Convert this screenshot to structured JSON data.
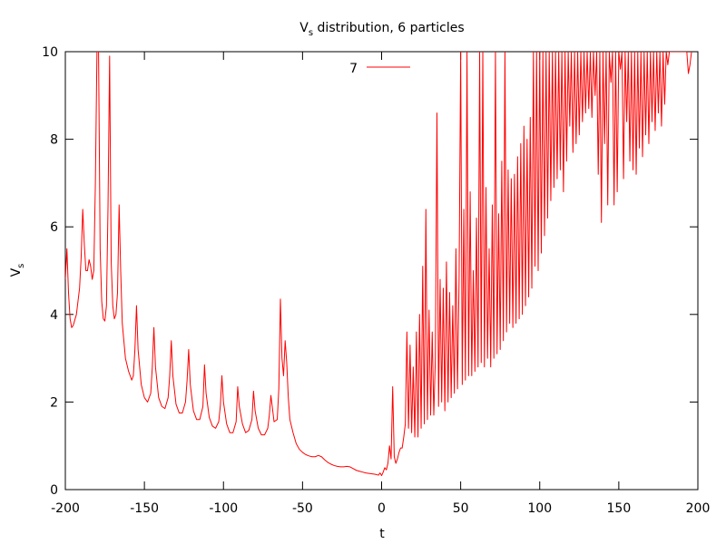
{
  "chart_data": {
    "type": "line",
    "title": "V",
    "title_subscript": "s",
    "title_suffix": " distribution, 6 particles",
    "xlabel": "t",
    "ylabel": "V",
    "ylabel_subscript": "s",
    "xlim": [
      -200,
      200
    ],
    "ylim": [
      0,
      10
    ],
    "x_ticks": [
      -200,
      -150,
      -100,
      -50,
      0,
      50,
      100,
      150,
      200
    ],
    "y_ticks": [
      0,
      2,
      4,
      6,
      8,
      10
    ],
    "grid": false,
    "legend_position": "top-center",
    "series": [
      {
        "name": "7",
        "color": "#ff0000",
        "points": [
          [
            -200,
            4.8
          ],
          [
            -199,
            5.5
          ],
          [
            -198,
            4.5
          ],
          [
            -197,
            3.9
          ],
          [
            -196,
            3.7
          ],
          [
            -195,
            3.75
          ],
          [
            -193,
            4.0
          ],
          [
            -191,
            4.6
          ],
          [
            -190,
            5.3
          ],
          [
            -189,
            6.4
          ],
          [
            -188,
            5.6
          ],
          [
            -187,
            5.0
          ],
          [
            -186,
            5.0
          ],
          [
            -185,
            5.25
          ],
          [
            -184,
            5.1
          ],
          [
            -183,
            4.8
          ],
          [
            -182,
            5.0
          ],
          [
            -181,
            7.0
          ],
          [
            -180,
            10.0
          ],
          [
            -179,
            10.0
          ],
          [
            -178,
            5.5
          ],
          [
            -177,
            4.3
          ],
          [
            -176,
            3.9
          ],
          [
            -175,
            3.85
          ],
          [
            -174,
            4.2
          ],
          [
            -173,
            6.5
          ],
          [
            -172,
            9.9
          ],
          [
            -171,
            5.2
          ],
          [
            -170,
            4.2
          ],
          [
            -169,
            3.9
          ],
          [
            -168,
            4.0
          ],
          [
            -167,
            4.5
          ],
          [
            -166,
            6.5
          ],
          [
            -165,
            5.0
          ],
          [
            -164,
            3.8
          ],
          [
            -162,
            3.0
          ],
          [
            -160,
            2.7
          ],
          [
            -158,
            2.5
          ],
          [
            -157,
            2.6
          ],
          [
            -156,
            3.2
          ],
          [
            -155,
            4.2
          ],
          [
            -154,
            3.2
          ],
          [
            -152,
            2.4
          ],
          [
            -150,
            2.1
          ],
          [
            -148,
            2.0
          ],
          [
            -146,
            2.2
          ],
          [
            -145,
            2.8
          ],
          [
            -144,
            3.7
          ],
          [
            -143,
            2.8
          ],
          [
            -141,
            2.1
          ],
          [
            -139,
            1.9
          ],
          [
            -137,
            1.85
          ],
          [
            -135,
            2.1
          ],
          [
            -134,
            2.6
          ],
          [
            -133,
            3.4
          ],
          [
            -132,
            2.6
          ],
          [
            -130,
            1.95
          ],
          [
            -128,
            1.75
          ],
          [
            -126,
            1.75
          ],
          [
            -124,
            2.0
          ],
          [
            -123,
            2.5
          ],
          [
            -122,
            3.2
          ],
          [
            -121,
            2.4
          ],
          [
            -119,
            1.8
          ],
          [
            -117,
            1.6
          ],
          [
            -115,
            1.6
          ],
          [
            -113,
            1.9
          ],
          [
            -112,
            2.85
          ],
          [
            -111,
            2.2
          ],
          [
            -109,
            1.65
          ],
          [
            -107,
            1.45
          ],
          [
            -105,
            1.4
          ],
          [
            -103,
            1.55
          ],
          [
            -102,
            1.9
          ],
          [
            -101,
            2.6
          ],
          [
            -100,
            2.0
          ],
          [
            -98,
            1.5
          ],
          [
            -96,
            1.3
          ],
          [
            -94,
            1.3
          ],
          [
            -92,
            1.55
          ],
          [
            -91,
            2.35
          ],
          [
            -90,
            1.9
          ],
          [
            -88,
            1.5
          ],
          [
            -86,
            1.3
          ],
          [
            -84,
            1.35
          ],
          [
            -82,
            1.6
          ],
          [
            -81,
            2.25
          ],
          [
            -80,
            1.8
          ],
          [
            -78,
            1.4
          ],
          [
            -76,
            1.25
          ],
          [
            -74,
            1.25
          ],
          [
            -72,
            1.4
          ],
          [
            -71,
            1.7
          ],
          [
            -70,
            2.15
          ],
          [
            -69,
            1.85
          ],
          [
            -68,
            1.55
          ],
          [
            -66,
            1.6
          ],
          [
            -65,
            2.3
          ],
          [
            -64,
            4.35
          ],
          [
            -63,
            3.0
          ],
          [
            -62,
            2.6
          ],
          [
            -61,
            3.4
          ],
          [
            -60,
            2.9
          ],
          [
            -59,
            2.1
          ],
          [
            -58,
            1.6
          ],
          [
            -56,
            1.3
          ],
          [
            -54,
            1.05
          ],
          [
            -52,
            0.92
          ],
          [
            -50,
            0.85
          ],
          [
            -48,
            0.8
          ],
          [
            -46,
            0.77
          ],
          [
            -44,
            0.75
          ],
          [
            -42,
            0.75
          ],
          [
            -40,
            0.78
          ],
          [
            -38,
            0.75
          ],
          [
            -36,
            0.68
          ],
          [
            -34,
            0.62
          ],
          [
            -32,
            0.58
          ],
          [
            -30,
            0.55
          ],
          [
            -28,
            0.53
          ],
          [
            -26,
            0.52
          ],
          [
            -24,
            0.52
          ],
          [
            -22,
            0.53
          ],
          [
            -20,
            0.52
          ],
          [
            -18,
            0.48
          ],
          [
            -16,
            0.44
          ],
          [
            -14,
            0.42
          ],
          [
            -12,
            0.4
          ],
          [
            -10,
            0.38
          ],
          [
            -8,
            0.37
          ],
          [
            -6,
            0.36
          ],
          [
            -4,
            0.35
          ],
          [
            -2,
            0.33
          ],
          [
            -1,
            0.38
          ],
          [
            0,
            0.32
          ],
          [
            1,
            0.4
          ],
          [
            2,
            0.5
          ],
          [
            3,
            0.45
          ],
          [
            4,
            0.6
          ],
          [
            5,
            1.0
          ],
          [
            6,
            0.7
          ],
          [
            7,
            2.35
          ],
          [
            8,
            0.75
          ],
          [
            9,
            0.6
          ],
          [
            10,
            0.7
          ],
          [
            11,
            0.85
          ],
          [
            12,
            0.95
          ],
          [
            13,
            0.95
          ],
          [
            14,
            1.2
          ],
          [
            15,
            1.5
          ],
          [
            16,
            3.6
          ],
          [
            17,
            1.4
          ],
          [
            18,
            3.3
          ],
          [
            19,
            1.3
          ],
          [
            20,
            2.8
          ],
          [
            21,
            1.2
          ],
          [
            22,
            3.6
          ],
          [
            23,
            1.2
          ],
          [
            24,
            4.0
          ],
          [
            25,
            1.4
          ],
          [
            26,
            5.1
          ],
          [
            27,
            1.5
          ],
          [
            28,
            6.4
          ],
          [
            29,
            1.6
          ],
          [
            30,
            4.1
          ],
          [
            31,
            1.7
          ],
          [
            32,
            3.6
          ],
          [
            33,
            1.7
          ],
          [
            34,
            3.0
          ],
          [
            35,
            8.6
          ],
          [
            36,
            1.9
          ],
          [
            37,
            4.8
          ],
          [
            38,
            2.0
          ],
          [
            39,
            4.6
          ],
          [
            40,
            1.8
          ],
          [
            41,
            5.2
          ],
          [
            42,
            2.0
          ],
          [
            43,
            4.5
          ],
          [
            44,
            2.1
          ],
          [
            45,
            4.2
          ],
          [
            46,
            2.2
          ],
          [
            47,
            5.5
          ],
          [
            48,
            2.3
          ],
          [
            49,
            4.8
          ],
          [
            50,
            10.0
          ],
          [
            51,
            2.4
          ],
          [
            52,
            6.4
          ],
          [
            53,
            2.5
          ],
          [
            54,
            10.0
          ],
          [
            55,
            2.6
          ],
          [
            56,
            6.8
          ],
          [
            57,
            2.6
          ],
          [
            58,
            5.0
          ],
          [
            59,
            2.7
          ],
          [
            60,
            6.2
          ],
          [
            61,
            2.8
          ],
          [
            62,
            10.0
          ],
          [
            63,
            2.9
          ],
          [
            64,
            10.0
          ],
          [
            65,
            2.8
          ],
          [
            66,
            6.9
          ],
          [
            67,
            3.0
          ],
          [
            68,
            5.5
          ],
          [
            69,
            2.8
          ],
          [
            70,
            6.5
          ],
          [
            71,
            3.0
          ],
          [
            72,
            10.0
          ],
          [
            73,
            3.1
          ],
          [
            74,
            6.3
          ],
          [
            75,
            3.2
          ],
          [
            76,
            7.5
          ],
          [
            77,
            3.4
          ],
          [
            78,
            10.0
          ],
          [
            79,
            3.6
          ],
          [
            80,
            7.3
          ],
          [
            81,
            3.8
          ],
          [
            82,
            7.1
          ],
          [
            83,
            3.7
          ],
          [
            84,
            7.2
          ],
          [
            85,
            3.8
          ],
          [
            86,
            7.6
          ],
          [
            87,
            3.9
          ],
          [
            88,
            7.9
          ],
          [
            89,
            4.0
          ],
          [
            90,
            8.3
          ],
          [
            91,
            4.2
          ],
          [
            92,
            8.0
          ],
          [
            93,
            4.4
          ],
          [
            94,
            8.5
          ],
          [
            95,
            4.6
          ],
          [
            96,
            10.0
          ],
          [
            97,
            5.1
          ],
          [
            98,
            10.0
          ],
          [
            99,
            5.0
          ],
          [
            100,
            10.0
          ],
          [
            101,
            5.4
          ],
          [
            102,
            10.0
          ],
          [
            103,
            5.8
          ],
          [
            104,
            10.0
          ],
          [
            105,
            6.2
          ],
          [
            106,
            10.0
          ],
          [
            107,
            6.6
          ],
          [
            108,
            10.0
          ],
          [
            109,
            6.9
          ],
          [
            110,
            10.0
          ],
          [
            111,
            7.1
          ],
          [
            112,
            10.0
          ],
          [
            113,
            7.3
          ],
          [
            114,
            10.0
          ],
          [
            115,
            6.8
          ],
          [
            116,
            10.0
          ],
          [
            117,
            7.5
          ],
          [
            118,
            10.0
          ],
          [
            119,
            8.3
          ],
          [
            120,
            10.0
          ],
          [
            121,
            7.7
          ],
          [
            122,
            10.0
          ],
          [
            123,
            7.9
          ],
          [
            124,
            10.0
          ],
          [
            125,
            8.1
          ],
          [
            126,
            10.0
          ],
          [
            127,
            8.4
          ],
          [
            128,
            10.0
          ],
          [
            129,
            8.6
          ],
          [
            130,
            10.0
          ],
          [
            131,
            8.7
          ],
          [
            132,
            10.0
          ],
          [
            133,
            8.5
          ],
          [
            134,
            10.0
          ],
          [
            135,
            9.0
          ],
          [
            136,
            10.0
          ],
          [
            137,
            7.2
          ],
          [
            138,
            10.0
          ],
          [
            139,
            6.1
          ],
          [
            140,
            10.0
          ],
          [
            141,
            7.9
          ],
          [
            142,
            10.0
          ],
          [
            143,
            6.5
          ],
          [
            144,
            10.0
          ],
          [
            145,
            9.3
          ],
          [
            146,
            10.0
          ],
          [
            147,
            6.5
          ],
          [
            148,
            10.0
          ],
          [
            149,
            6.8
          ],
          [
            150,
            10.0
          ],
          [
            151,
            9.6
          ],
          [
            152,
            10.0
          ],
          [
            153,
            7.1
          ],
          [
            154,
            10.0
          ],
          [
            155,
            8.4
          ],
          [
            156,
            10.0
          ],
          [
            157,
            7.5
          ],
          [
            158,
            10.0
          ],
          [
            159,
            7.3
          ],
          [
            160,
            10.0
          ],
          [
            161,
            7.2
          ],
          [
            162,
            10.0
          ],
          [
            163,
            7.8
          ],
          [
            164,
            10.0
          ],
          [
            165,
            7.6
          ],
          [
            166,
            10.0
          ],
          [
            167,
            8.1
          ],
          [
            168,
            10.0
          ],
          [
            169,
            7.9
          ],
          [
            170,
            10.0
          ],
          [
            171,
            8.4
          ],
          [
            172,
            10.0
          ],
          [
            173,
            8.2
          ],
          [
            174,
            10.0
          ],
          [
            175,
            8.6
          ],
          [
            176,
            10.0
          ],
          [
            177,
            8.3
          ],
          [
            178,
            10.0
          ],
          [
            179,
            8.8
          ],
          [
            180,
            10.0
          ],
          [
            181,
            9.7
          ],
          [
            182,
            10.0
          ],
          [
            183,
            10.0
          ],
          [
            193,
            10.0
          ],
          [
            194,
            9.5
          ],
          [
            195,
            9.7
          ],
          [
            196,
            10.0
          ]
        ]
      }
    ]
  }
}
